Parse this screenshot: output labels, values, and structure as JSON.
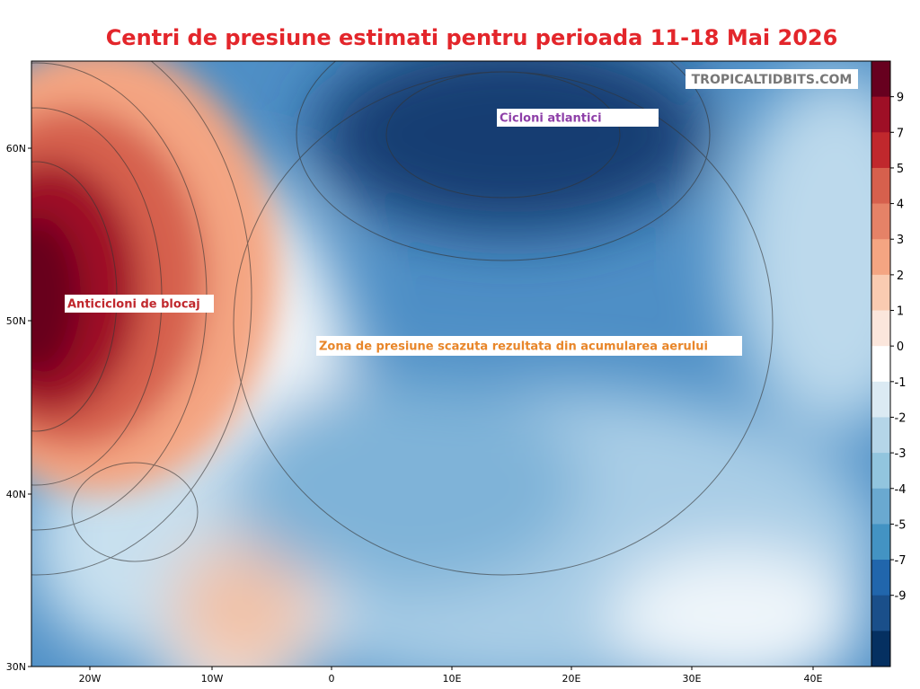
{
  "title": "Centri de presiune estimati pentru perioada 11-18 Mai 2026",
  "watermark": "TROPICALTIDBITS.COM",
  "annotations": [
    "Cicloni atlantici",
    "Anticicloni de blocaj",
    "Zona de presiune scazuta rezultata din acumularea aerului"
  ],
  "lat_labels": [
    "60N",
    "50N",
    "40N",
    "30N"
  ],
  "lon_labels": [
    "20W",
    "10W",
    "0",
    "10E",
    "20E",
    "30E",
    "40E"
  ],
  "colorbar": {
    "ticks": [
      9,
      7,
      5,
      4,
      3,
      2,
      1,
      0,
      -1,
      -2,
      -3,
      -4,
      -5,
      -7,
      -9
    ],
    "colors": [
      "#67001f",
      "#9e0f26",
      "#c0282d",
      "#d6604d",
      "#e58267",
      "#f4a582",
      "#f9cbb1",
      "#fbe6dc",
      "#ffffff",
      "#dbeaf3",
      "#b5d5e8",
      "#92c5de",
      "#6aa9d0",
      "#4393c3",
      "#2166ac",
      "#1a4f8a",
      "#053061"
    ]
  }
}
